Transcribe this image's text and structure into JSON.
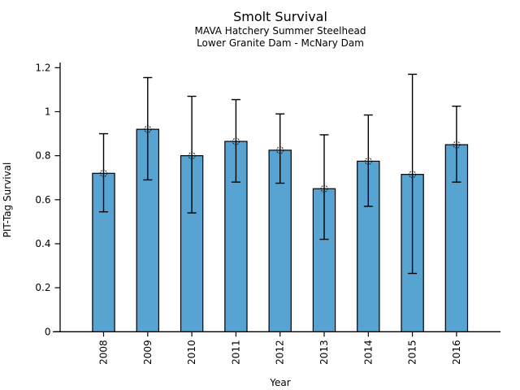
{
  "chart_data": {
    "type": "bar",
    "title": "Smolt Survival",
    "subtitle1": "MAVA Hatchery Summer Steelhead",
    "subtitle2": "Lower Granite Dam - McNary Dam",
    "xlabel": "Year",
    "ylabel": "PIT-Tag Survival",
    "categories": [
      "2008",
      "2009",
      "2010",
      "2011",
      "2012",
      "2013",
      "2014",
      "2015",
      "2016"
    ],
    "values": [
      0.72,
      0.92,
      0.8,
      0.865,
      0.825,
      0.65,
      0.775,
      0.715,
      0.85
    ],
    "error_low": [
      0.545,
      0.69,
      0.54,
      0.68,
      0.675,
      0.42,
      0.57,
      0.265,
      0.68
    ],
    "error_high": [
      0.9,
      1.155,
      1.07,
      1.055,
      0.99,
      0.895,
      0.985,
      1.17,
      1.025
    ],
    "ylim": [
      0,
      1.2
    ],
    "yticks": [
      0,
      0.2,
      0.4,
      0.6,
      0.8,
      1,
      1.2
    ],
    "ytick_labels": [
      "0",
      "0.2",
      "0.4",
      "0.6",
      "0.8",
      "1",
      "1.2"
    ],
    "grid": false,
    "legend": "none",
    "marker": "open-dotted-circle",
    "colors": {
      "bar_fill": "#57A4D2",
      "bar_edge": "#000000",
      "error_bar": "#000000",
      "marker_edge": "#1a1a1a",
      "axis": "#000000",
      "background": "#ffffff"
    }
  }
}
